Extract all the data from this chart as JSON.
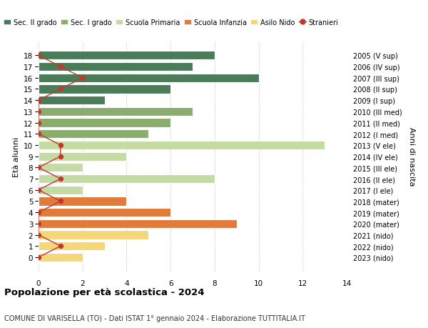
{
  "ages": [
    18,
    17,
    16,
    15,
    14,
    13,
    12,
    11,
    10,
    9,
    8,
    7,
    6,
    5,
    4,
    3,
    2,
    1,
    0
  ],
  "year_labels": [
    "2005 (V sup)",
    "2006 (IV sup)",
    "2007 (III sup)",
    "2008 (II sup)",
    "2009 (I sup)",
    "2010 (III med)",
    "2011 (II med)",
    "2012 (I med)",
    "2013 (V ele)",
    "2014 (IV ele)",
    "2015 (III ele)",
    "2016 (II ele)",
    "2017 (I ele)",
    "2018 (mater)",
    "2019 (mater)",
    "2020 (mater)",
    "2021 (nido)",
    "2022 (nido)",
    "2023 (nido)"
  ],
  "bar_values": [
    8,
    7,
    10,
    6,
    3,
    7,
    6,
    5,
    13,
    4,
    2,
    8,
    2,
    4,
    6,
    9,
    5,
    3,
    2
  ],
  "bar_colors": [
    "#4a7c59",
    "#4a7c59",
    "#4a7c59",
    "#4a7c59",
    "#4a7c59",
    "#8aad6e",
    "#8aad6e",
    "#8aad6e",
    "#c5dba4",
    "#c5dba4",
    "#c5dba4",
    "#c5dba4",
    "#c5dba4",
    "#e07b39",
    "#e07b39",
    "#e07b39",
    "#f5d67a",
    "#f5d67a",
    "#f5d67a"
  ],
  "stranieri_x": [
    0,
    1,
    2,
    1,
    0,
    0,
    0,
    0,
    1,
    1,
    0,
    1,
    0,
    1,
    0,
    0,
    0,
    1,
    0
  ],
  "legend_labels": [
    "Sec. II grado",
    "Sec. I grado",
    "Scuola Primaria",
    "Scuola Infanzia",
    "Asilo Nido",
    "Stranieri"
  ],
  "legend_colors": [
    "#4a7c59",
    "#8aad6e",
    "#c5dba4",
    "#e07b39",
    "#f5d67a",
    "#c0392b"
  ],
  "title": "Popolazione per età scolastica - 2024",
  "subtitle": "COMUNE DI VARISELLA (TO) - Dati ISTAT 1° gennaio 2024 - Elaborazione TUTTITALIA.IT",
  "ylabel_left": "Età alunni",
  "ylabel_right": "Anni di nascita",
  "xlim": [
    0,
    14
  ],
  "background_color": "#ffffff",
  "grid_color": "#cccccc"
}
